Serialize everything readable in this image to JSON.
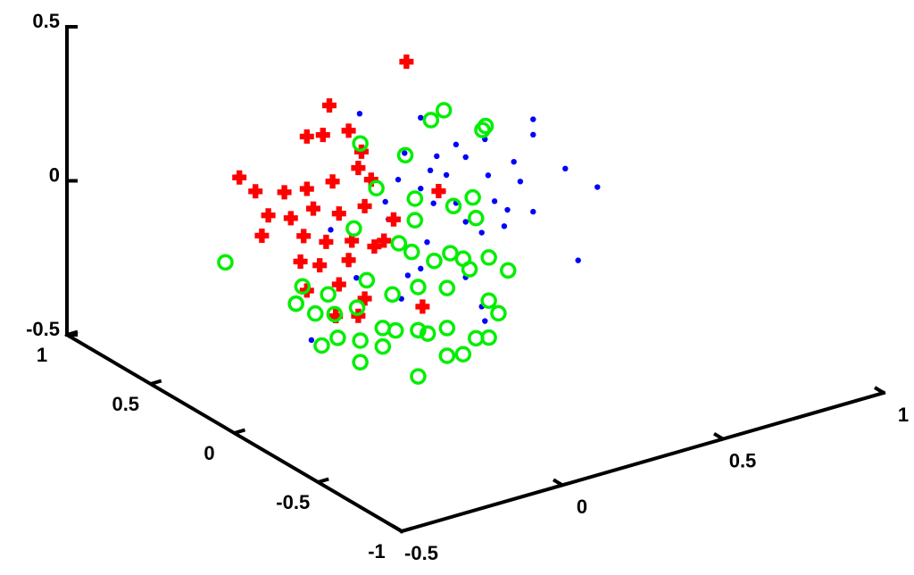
{
  "chart_data": {
    "type": "scatter3d",
    "xlim": [
      -0.5,
      1
    ],
    "ylim": [
      -1,
      1
    ],
    "zlim": [
      -0.5,
      0.5
    ],
    "xticks": [
      -0.5,
      0,
      0.5,
      1
    ],
    "yticks": [
      -1,
      -0.5,
      0,
      0.5,
      1
    ],
    "zticks": [
      -0.5,
      0,
      0.5
    ],
    "series": [
      {
        "color": "#0000ff",
        "marker": "dot",
        "x": [
          -0.11,
          0.08,
          0.43,
          0.43,
          0.28,
          0.19,
          0.03,
          0.13,
          0.22,
          0.37,
          0.53,
          0.11,
          0.16,
          0.29,
          0.39,
          0.63,
          0.01,
          0.08,
          0.15,
          0.19,
          0.31,
          0.35,
          0.43,
          0.12,
          0.22,
          0.27,
          0.34,
          -0.02,
          0.1,
          0.57,
          0.04,
          0.22,
          0.27,
          0.28,
          -0.2,
          -0.12,
          -0.26,
          0.02,
          -0.03,
          0.08
        ],
        "y": [
          0,
          0,
          0,
          0,
          0,
          0,
          0,
          0,
          0,
          0,
          0,
          0,
          0,
          0,
          0,
          0,
          0,
          0,
          0,
          0,
          0,
          0,
          0,
          0,
          0,
          0,
          0,
          0,
          0,
          0,
          0,
          0,
          0,
          0,
          0,
          0,
          0,
          0,
          0,
          0
        ],
        "z": [
          0.42,
          0.35,
          0.24,
          0.19,
          0.22,
          0.23,
          0.25,
          0.21,
          0.18,
          0.12,
          0.05,
          0.17,
          0.14,
          0.1,
          0.05,
          -0.04,
          0.17,
          0.12,
          0.09,
          0.04,
          0.01,
          -0.03,
          -0.06,
          0.06,
          -0.03,
          -0.08,
          -0.08,
          0.05,
          -0.06,
          -0.26,
          -0.15,
          -0.21,
          -0.32,
          -0.37,
          0.07,
          -0.11,
          -0.27,
          -0.22,
          0.11,
          -0.14
        ]
      },
      {
        "color": "#ff0000",
        "marker": "plus",
        "x": [
          0.14,
          -0.1,
          -0.17,
          -0.12,
          -0.04,
          0.0,
          -0.38,
          -0.33,
          -0.24,
          -0.17,
          -0.09,
          -0.01,
          0.03,
          -0.29,
          -0.22,
          -0.15,
          -0.07,
          0.01,
          0.1,
          -0.31,
          -0.18,
          -0.11,
          -0.03,
          0.04,
          -0.19,
          -0.13,
          -0.04,
          -0.17,
          -0.07,
          0.01,
          -0.08,
          -0.01,
          0.19,
          0.07,
          0.24
        ],
        "y": [
          0.2,
          0.2,
          0.2,
          0.2,
          0.2,
          0.2,
          0.2,
          0.2,
          0.2,
          0.2,
          0.2,
          0.2,
          0.2,
          0.2,
          0.2,
          0.2,
          0.2,
          0.2,
          0.2,
          0.2,
          0.2,
          0.2,
          0.2,
          0.2,
          0.2,
          0.2,
          0.2,
          0.2,
          0.2,
          0.2,
          0.2,
          0.2,
          0.2,
          0.2,
          0.2
        ],
        "z": [
          0.45,
          0.38,
          0.3,
          0.29,
          0.28,
          0.2,
          0.23,
          0.17,
          0.14,
          0.13,
          0.13,
          0.15,
          0.1,
          0.08,
          0.05,
          0.06,
          0.02,
          0.02,
          -0.05,
          0.02,
          -0.02,
          -0.06,
          -0.08,
          -0.12,
          -0.1,
          -0.13,
          -0.14,
          -0.2,
          -0.21,
          -0.28,
          -0.31,
          -0.33,
          -0.36,
          -0.11,
          0.0
        ]
      },
      {
        "color": "#00ee00",
        "marker": "circle",
        "x": [
          -0.58,
          0.1,
          0.06,
          0.23,
          0.22,
          -0.16,
          -0.02,
          -0.11,
          0.01,
          0.19,
          0.13,
          0.01,
          0.2,
          -0.04,
          0.12,
          0.07,
          0.16,
          0.24,
          0.3,
          0.18,
          0.0,
          -0.34,
          -0.36,
          -0.26,
          -0.14,
          -0.06,
          0.02,
          0.11,
          0.24,
          0.27,
          -0.36,
          -0.3,
          -0.24,
          -0.17,
          -0.09,
          -0.05,
          0.02,
          0.05,
          0.11,
          0.2,
          0.24,
          -0.23,
          -0.16,
          -0.09,
          -0.16,
          0.02,
          0.11,
          0.16,
          -0.28,
          -0.18
        ],
        "y": [
          -0.1,
          -0.1,
          -0.1,
          -0.1,
          -0.1,
          -0.1,
          -0.1,
          -0.1,
          -0.1,
          -0.1,
          -0.1,
          -0.1,
          -0.1,
          -0.1,
          -0.1,
          -0.1,
          -0.1,
          -0.1,
          -0.1,
          -0.1,
          -0.1,
          -0.1,
          -0.1,
          -0.1,
          -0.1,
          -0.1,
          -0.1,
          -0.1,
          -0.1,
          -0.1,
          -0.1,
          -0.1,
          -0.1,
          -0.1,
          -0.1,
          -0.1,
          -0.1,
          -0.1,
          -0.1,
          -0.1,
          -0.1,
          -0.1,
          -0.1,
          -0.1,
          -0.1,
          -0.1,
          -0.1,
          -0.1,
          -0.1,
          -0.1
        ],
        "z": [
          0.11,
          0.4,
          0.38,
          0.31,
          0.3,
          0.37,
          0.29,
          0.21,
          0.14,
          0.09,
          0.08,
          0.07,
          0.02,
          0.01,
          -0.07,
          -0.08,
          -0.1,
          -0.12,
          -0.18,
          -0.14,
          -0.03,
          -0.04,
          -0.09,
          -0.09,
          -0.08,
          -0.15,
          -0.15,
          -0.18,
          -0.26,
          -0.31,
          -0.09,
          -0.14,
          -0.16,
          -0.16,
          -0.25,
          -0.27,
          -0.29,
          -0.31,
          -0.31,
          -0.37,
          -0.38,
          -0.24,
          -0.27,
          -0.31,
          -0.34,
          -0.44,
          -0.4,
          -0.41,
          -0.25,
          0.1
        ]
      }
    ]
  }
}
